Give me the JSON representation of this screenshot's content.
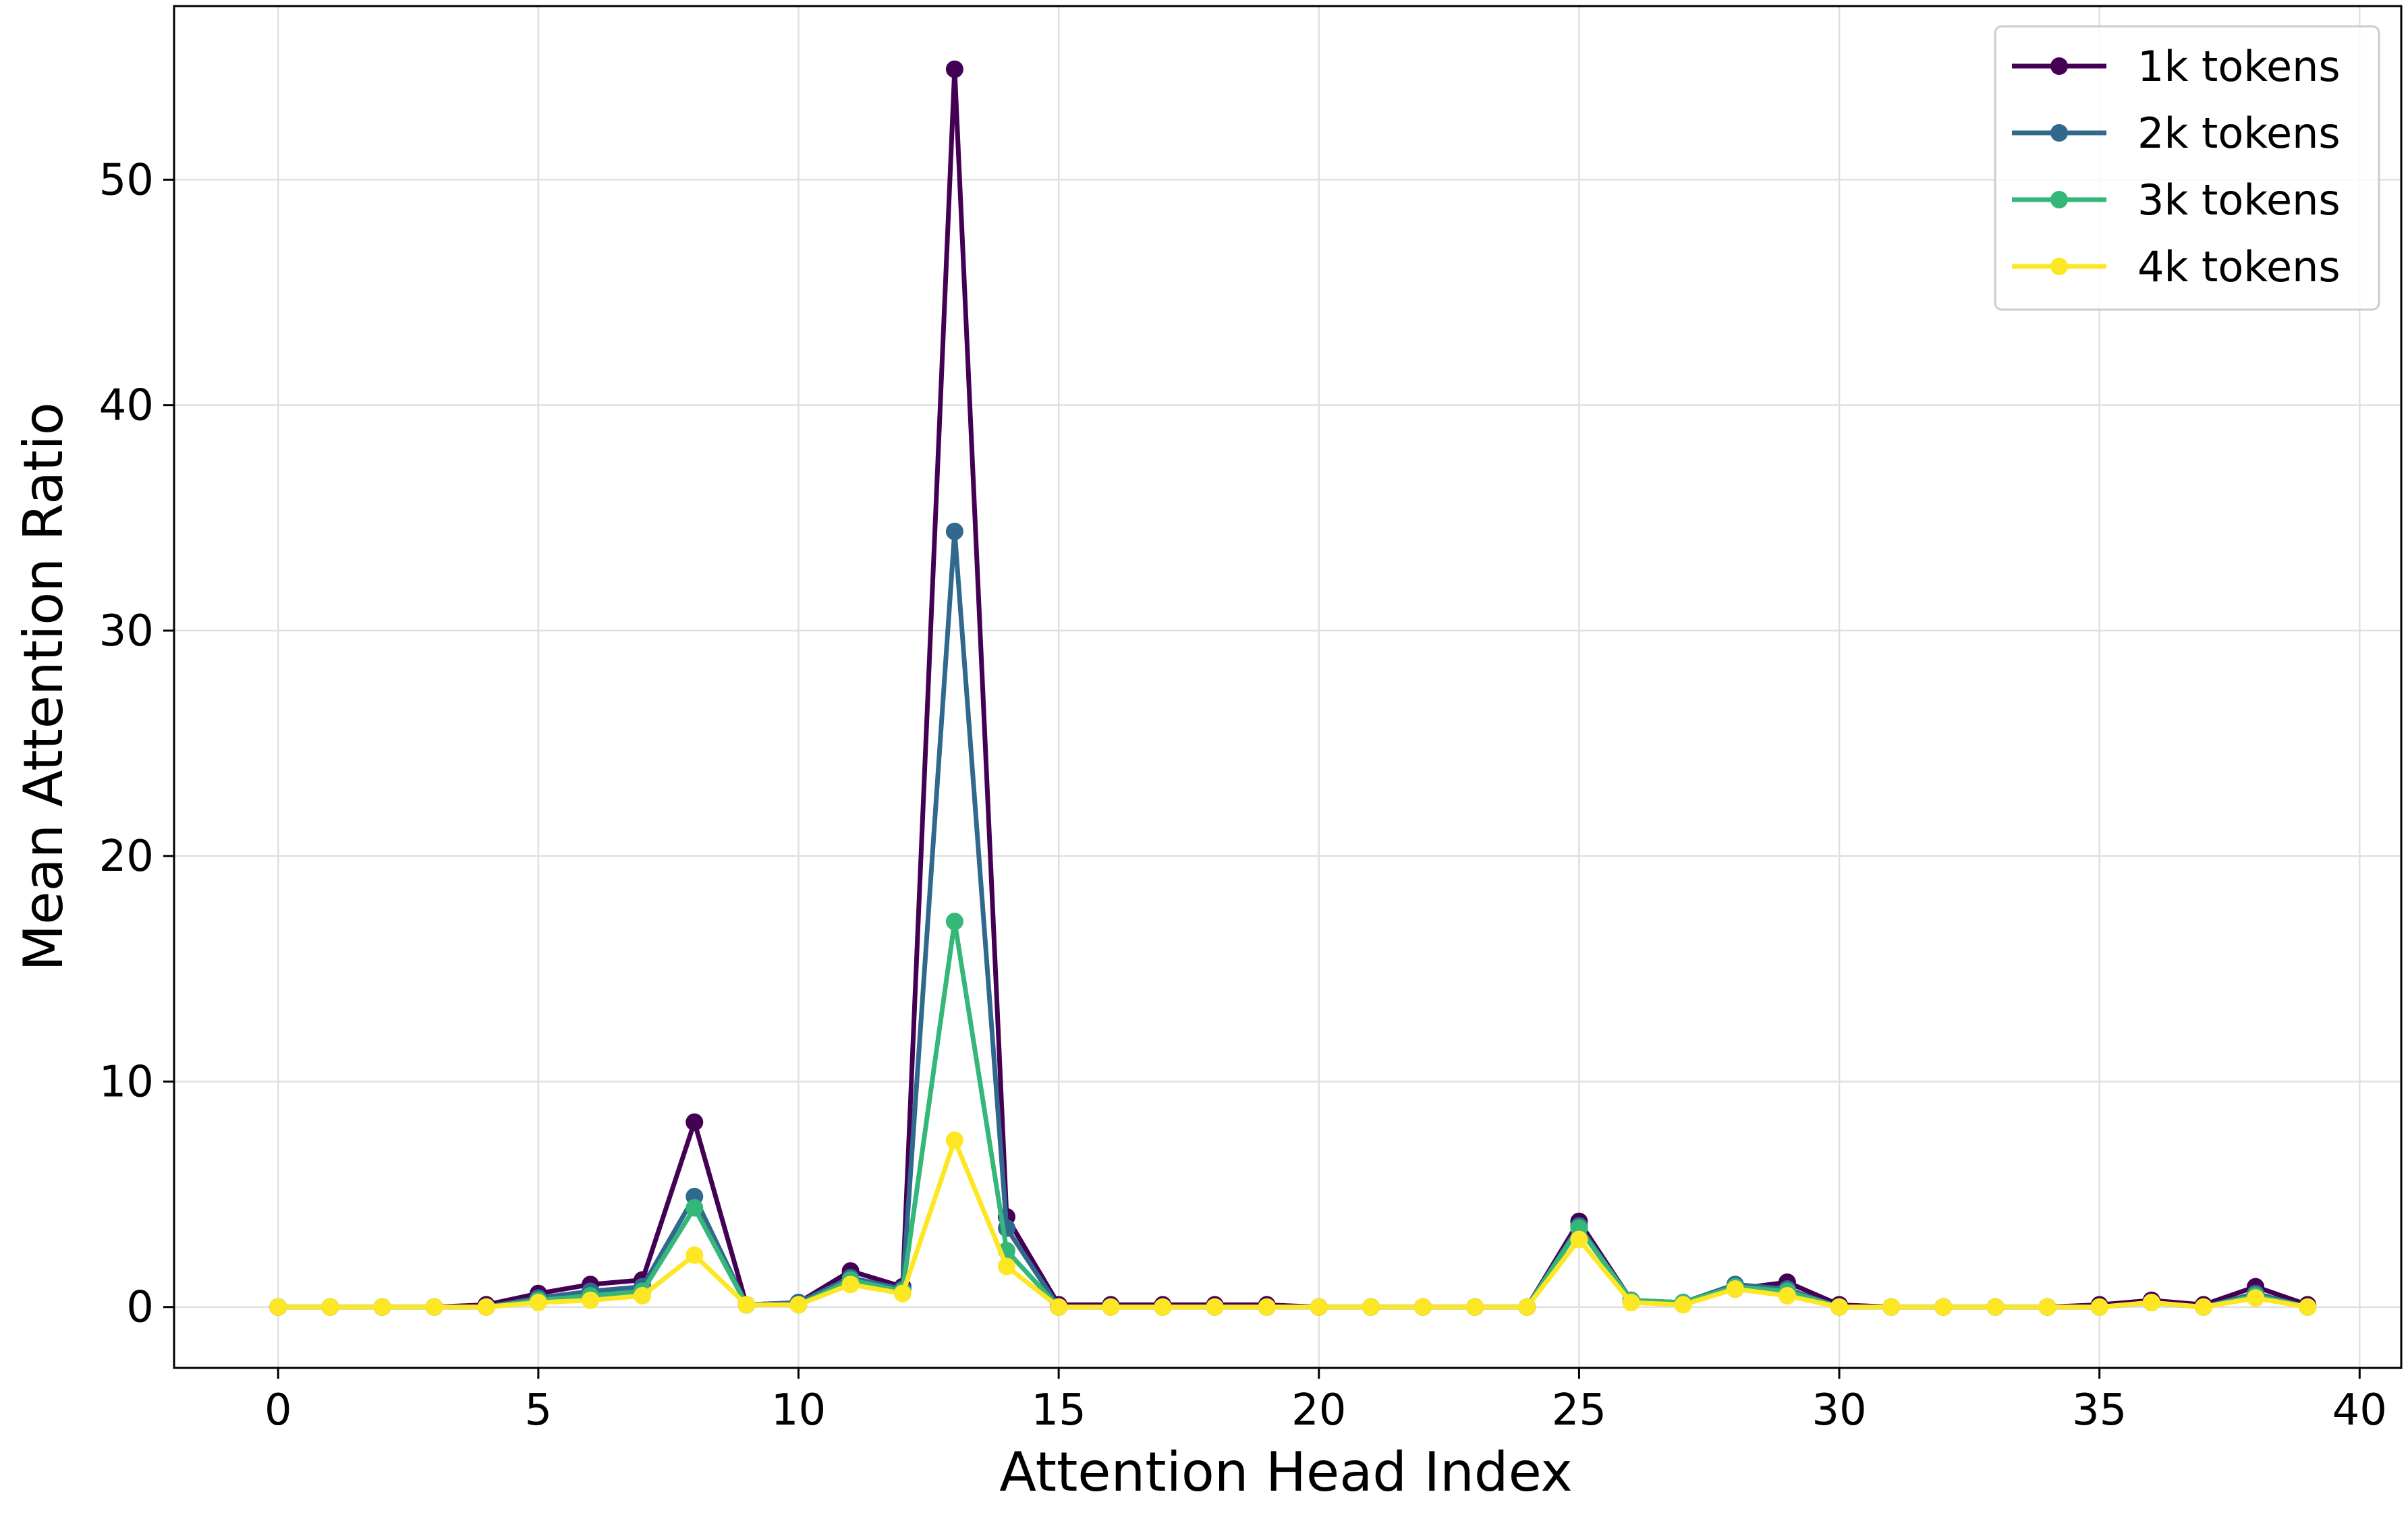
{
  "chart_data": {
    "type": "line",
    "title": "",
    "xlabel": "Attention Head Index",
    "ylabel": "Mean Attention Ratio",
    "xlim": [
      -2,
      40.8
    ],
    "ylim": [
      -2.7,
      57.7
    ],
    "xticks": [
      0,
      5,
      10,
      15,
      20,
      25,
      30,
      35,
      40
    ],
    "yticks": [
      0,
      10,
      20,
      30,
      40,
      50
    ],
    "grid": true,
    "legend_position": "top-right",
    "x": [
      0,
      1,
      2,
      3,
      4,
      5,
      6,
      7,
      8,
      9,
      10,
      11,
      12,
      13,
      14,
      15,
      16,
      17,
      18,
      19,
      20,
      21,
      22,
      23,
      24,
      25,
      26,
      27,
      28,
      29,
      30,
      31,
      32,
      33,
      34,
      35,
      36,
      37,
      38,
      39
    ],
    "series": [
      {
        "name": "1k tokens",
        "color": "#440154",
        "values": [
          0.0,
          0.0,
          0.0,
          0.0,
          0.1,
          0.6,
          1.0,
          1.2,
          8.2,
          0.1,
          0.2,
          1.6,
          0.9,
          54.9,
          4.0,
          0.1,
          0.1,
          0.1,
          0.1,
          0.1,
          0.0,
          0.0,
          0.0,
          0.0,
          0.0,
          3.8,
          0.3,
          0.2,
          0.8,
          1.1,
          0.1,
          0.0,
          0.0,
          0.0,
          0.0,
          0.1,
          0.3,
          0.1,
          0.9,
          0.1
        ]
      },
      {
        "name": "2k tokens",
        "color": "#31688e",
        "values": [
          0.0,
          0.0,
          0.0,
          0.0,
          0.0,
          0.4,
          0.7,
          0.9,
          4.9,
          0.1,
          0.2,
          1.3,
          0.8,
          34.4,
          3.5,
          0.0,
          0.0,
          0.0,
          0.0,
          0.0,
          0.0,
          0.0,
          0.0,
          0.0,
          0.0,
          3.6,
          0.3,
          0.2,
          1.0,
          0.8,
          0.0,
          0.0,
          0.0,
          0.0,
          0.0,
          0.0,
          0.2,
          0.0,
          0.6,
          0.0
        ]
      },
      {
        "name": "3k tokens",
        "color": "#35b779",
        "values": [
          0.0,
          0.0,
          0.0,
          0.0,
          0.0,
          0.3,
          0.5,
          0.7,
          4.4,
          0.1,
          0.1,
          1.2,
          0.7,
          17.1,
          2.5,
          0.0,
          0.0,
          0.0,
          0.0,
          0.0,
          0.0,
          0.0,
          0.0,
          0.0,
          0.0,
          3.5,
          0.3,
          0.2,
          0.9,
          0.7,
          0.0,
          0.0,
          0.0,
          0.0,
          0.0,
          0.0,
          0.2,
          0.0,
          0.5,
          0.0
        ]
      },
      {
        "name": "4k tokens",
        "color": "#fde725",
        "values": [
          0.0,
          0.0,
          0.0,
          0.0,
          0.0,
          0.2,
          0.3,
          0.5,
          2.3,
          0.1,
          0.1,
          1.0,
          0.6,
          7.4,
          1.8,
          0.0,
          0.0,
          0.0,
          0.0,
          0.0,
          0.0,
          0.0,
          0.0,
          0.0,
          0.0,
          3.0,
          0.2,
          0.1,
          0.8,
          0.5,
          0.0,
          0.0,
          0.0,
          0.0,
          0.0,
          0.0,
          0.2,
          0.0,
          0.4,
          0.0
        ]
      }
    ]
  }
}
